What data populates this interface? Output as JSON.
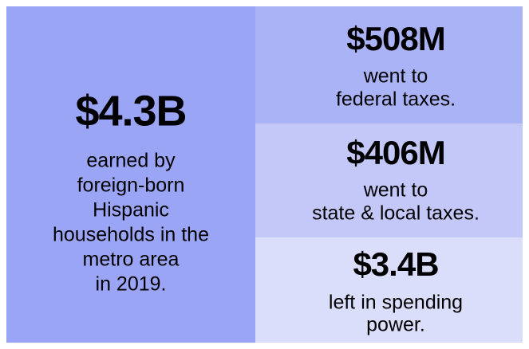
{
  "left": {
    "amount": "$4.3B",
    "lines": [
      "earned by",
      "foreign-born",
      "Hispanic",
      "households in the",
      "metro area",
      "in 2019."
    ]
  },
  "right": [
    {
      "amount": "$508M",
      "lines": [
        "went to",
        "federal taxes."
      ]
    },
    {
      "amount": "$406M",
      "lines": [
        "went to",
        "state & local taxes."
      ]
    },
    {
      "amount": "$3.4B",
      "lines": [
        "left in spending",
        "power."
      ]
    }
  ]
}
